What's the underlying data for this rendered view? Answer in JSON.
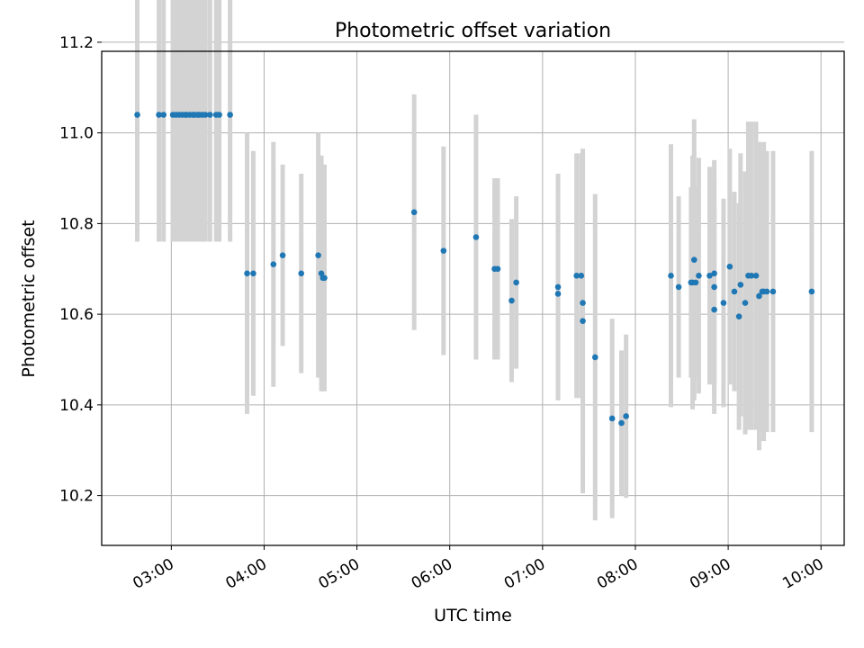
{
  "chart_data": {
    "type": "scatter",
    "title": "Photometric offset variation",
    "xlabel": "UTC time",
    "ylabel": "Photometric offset",
    "xlim": [
      "02:15",
      "10:15"
    ],
    "ylim": [
      10.09,
      11.18
    ],
    "x_ticks": [
      "03:00",
      "04:00",
      "05:00",
      "06:00",
      "07:00",
      "08:00",
      "09:00",
      "10:00"
    ],
    "y_ticks": [
      "10.2",
      "10.4",
      "10.6",
      "10.8",
      "11.0",
      "11.2"
    ],
    "grid": true,
    "point_color": "#1f77b4",
    "errorbar_color": "#d3d3d3",
    "series": [
      {
        "x": [
          "02:38",
          "02:52",
          "02:55",
          "03:01",
          "03:03",
          "03:05",
          "03:07",
          "03:09",
          "03:10",
          "03:12",
          "03:14",
          "03:15",
          "03:17",
          "03:18",
          "03:20",
          "03:22",
          "03:25",
          "03:29",
          "03:31",
          "03:38",
          "03:49",
          "03:53",
          "04:06",
          "04:12",
          "04:24",
          "04:35",
          "04:37",
          "04:38",
          "04:39",
          "05:37",
          "05:56",
          "06:17",
          "06:29",
          "06:31",
          "06:40",
          "06:43",
          "07:10",
          "07:10",
          "07:22",
          "07:25",
          "07:26",
          "07:26",
          "07:34",
          "07:45",
          "07:51",
          "07:54",
          "08:23",
          "08:28",
          "08:36",
          "08:37",
          "08:38",
          "08:39",
          "08:41",
          "08:48",
          "08:51",
          "08:51",
          "08:51",
          "08:57",
          "09:01",
          "09:04",
          "09:07",
          "09:08",
          "09:11",
          "09:13",
          "09:15",
          "09:18",
          "09:20",
          "09:22",
          "09:23",
          "09:25",
          "09:29",
          "09:54"
        ],
        "y": [
          11.04,
          11.04,
          11.04,
          11.04,
          11.04,
          11.04,
          11.04,
          11.04,
          11.04,
          11.04,
          11.04,
          11.04,
          11.04,
          11.04,
          11.04,
          11.04,
          11.04,
          11.04,
          11.04,
          11.04,
          10.69,
          10.69,
          10.71,
          10.73,
          10.69,
          10.73,
          10.69,
          10.68,
          10.68,
          10.825,
          10.74,
          10.77,
          10.7,
          10.7,
          10.63,
          10.67,
          10.66,
          10.645,
          10.685,
          10.685,
          10.625,
          10.585,
          10.505,
          10.37,
          10.36,
          10.375,
          10.685,
          10.66,
          10.67,
          10.67,
          10.72,
          10.67,
          10.685,
          10.685,
          10.69,
          10.66,
          10.61,
          10.625,
          10.705,
          10.65,
          10.595,
          10.665,
          10.625,
          10.685,
          10.685,
          10.685,
          10.64,
          10.65,
          10.65,
          10.65,
          10.65,
          10.65
        ],
        "err": [
          0.28,
          0.28,
          0.28,
          0.28,
          0.28,
          0.28,
          0.28,
          0.28,
          0.28,
          0.28,
          0.28,
          0.28,
          0.28,
          0.28,
          0.28,
          0.28,
          0.28,
          0.28,
          0.28,
          0.28,
          0.31,
          0.27,
          0.27,
          0.2,
          0.22,
          0.27,
          0.26,
          0.25,
          0.25,
          0.26,
          0.23,
          0.27,
          0.2,
          0.2,
          0.18,
          0.19,
          0.25,
          0.23,
          0.27,
          0.27,
          0.33,
          0.38,
          0.36,
          0.22,
          0.16,
          0.18,
          0.29,
          0.2,
          0.21,
          0.28,
          0.31,
          0.21,
          0.26,
          0.24,
          0.25,
          0.24,
          0.23,
          0.23,
          0.26,
          0.22,
          0.25,
          0.29,
          0.29,
          0.34,
          0.34,
          0.34,
          0.34,
          0.31,
          0.33,
          0.31,
          0.31,
          0.31
        ]
      }
    ]
  }
}
